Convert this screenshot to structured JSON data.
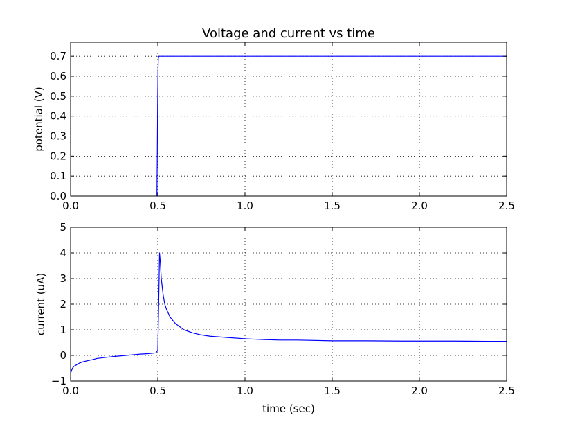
{
  "chart_data": [
    {
      "type": "line",
      "title": "Voltage and current vs time",
      "xlabel": "",
      "ylabel": "potential (V)",
      "xlim": [
        0.0,
        2.5
      ],
      "ylim": [
        0.0,
        0.77
      ],
      "xticks": [
        "0.0",
        "0.5",
        "1.0",
        "1.5",
        "2.0",
        "2.5"
      ],
      "yticks": [
        "0.0",
        "0.1",
        "0.2",
        "0.3",
        "0.4",
        "0.5",
        "0.6",
        "0.7"
      ],
      "grid": true,
      "series": [
        {
          "color": "#0000ff",
          "x": [
            0.495,
            0.497,
            0.499,
            0.501,
            0.503,
            0.505,
            0.507,
            0.51,
            0.6,
            1.0,
            1.5,
            2.0,
            2.5
          ],
          "y": [
            0.0,
            0.2,
            0.45,
            0.62,
            0.69,
            0.7,
            0.7,
            0.7,
            0.7,
            0.7,
            0.7,
            0.7,
            0.7
          ]
        }
      ]
    },
    {
      "type": "line",
      "title": "",
      "xlabel": "time (sec)",
      "ylabel": "current (uA)",
      "xlim": [
        0.0,
        2.5
      ],
      "ylim": [
        -1,
        5
      ],
      "xticks": [
        "0.0",
        "0.5",
        "1.0",
        "1.5",
        "2.0",
        "2.5"
      ],
      "yticks": [
        "−1",
        "0",
        "1",
        "2",
        "3",
        "4",
        "5"
      ],
      "grid": true,
      "series": [
        {
          "color": "#0000ff",
          "x": [
            0.0,
            0.005,
            0.01,
            0.02,
            0.03,
            0.05,
            0.07,
            0.1,
            0.13,
            0.15,
            0.2,
            0.25,
            0.3,
            0.35,
            0.4,
            0.45,
            0.49,
            0.5,
            0.505,
            0.51,
            0.515,
            0.52,
            0.53,
            0.54,
            0.55,
            0.57,
            0.6,
            0.65,
            0.7,
            0.75,
            0.8,
            0.9,
            1.0,
            1.1,
            1.2,
            1.3,
            1.5,
            1.7,
            1.9,
            2.0,
            2.2,
            2.4,
            2.5
          ],
          "y": [
            -0.7,
            -0.6,
            -0.5,
            -0.42,
            -0.38,
            -0.3,
            -0.25,
            -0.2,
            -0.16,
            -0.12,
            -0.08,
            -0.04,
            -0.01,
            0.02,
            0.05,
            0.07,
            0.1,
            0.2,
            2.0,
            4.0,
            3.6,
            3.0,
            2.4,
            2.0,
            1.8,
            1.5,
            1.25,
            1.0,
            0.88,
            0.8,
            0.75,
            0.7,
            0.65,
            0.62,
            0.6,
            0.6,
            0.57,
            0.57,
            0.56,
            0.56,
            0.56,
            0.55,
            0.55
          ]
        }
      ]
    }
  ]
}
